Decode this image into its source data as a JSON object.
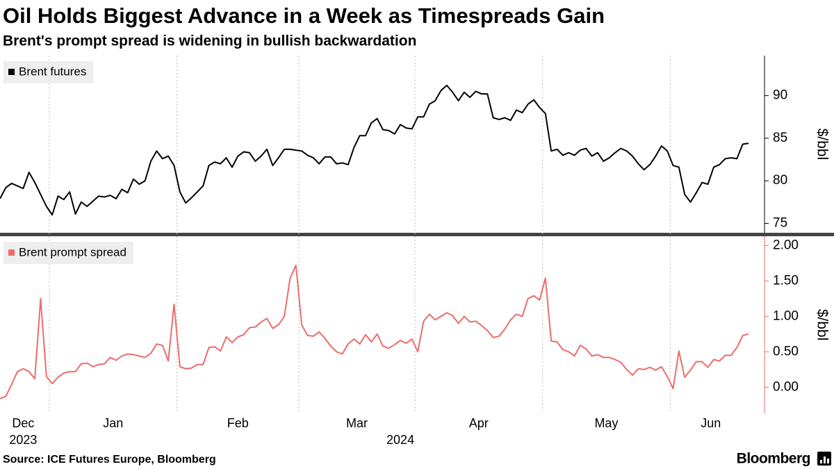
{
  "brand": "Bloomberg",
  "chart_data": [
    {
      "type": "line",
      "title": "Oil Holds Biggest Advance in a Week as Timespreads Gain",
      "subtitle": "Brent's prompt spread is widening in bullish backwardation",
      "source": "Source: ICE Futures Europe, Bloomberg",
      "y_label": "$/bbl",
      "ylim": [
        73.9,
        94.7
      ],
      "yticks": [
        75,
        80,
        85,
        90
      ],
      "series": [
        {
          "name": "Brent futures",
          "color": "#000000",
          "values": [
            77.9,
            79.2,
            79.7,
            79.4,
            79.1,
            81.0,
            79.8,
            78.4,
            77.0,
            76.0,
            78.2,
            77.8,
            78.7,
            76.1,
            77.5,
            77.0,
            77.6,
            78.2,
            78.1,
            78.3,
            77.9,
            79.0,
            78.6,
            80.2,
            79.6,
            80.0,
            82.3,
            83.5,
            82.6,
            82.9,
            81.8,
            78.7,
            77.4,
            78.0,
            78.7,
            79.4,
            81.8,
            82.2,
            82.0,
            82.7,
            81.6,
            82.9,
            83.4,
            83.3,
            82.3,
            82.9,
            83.7,
            81.8,
            82.7,
            83.7,
            83.7,
            83.6,
            83.5,
            83.0,
            82.7,
            82.0,
            82.8,
            82.8,
            82.0,
            82.1,
            81.9,
            83.9,
            85.3,
            85.3,
            86.8,
            87.3,
            86.0,
            85.9,
            85.5,
            86.6,
            86.2,
            86.1,
            87.5,
            87.5,
            89.0,
            89.4,
            90.6,
            91.2,
            90.4,
            89.4,
            90.4,
            89.8,
            90.5,
            90.2,
            90.2,
            87.4,
            87.2,
            87.4,
            87.1,
            88.3,
            88.0,
            89.0,
            89.5,
            88.6,
            87.9,
            83.5,
            83.7,
            83.0,
            83.3,
            83.0,
            83.6,
            83.8,
            82.9,
            83.3,
            82.3,
            82.7,
            83.3,
            83.8,
            83.5,
            82.9,
            82.0,
            81.3,
            81.9,
            82.9,
            84.1,
            83.5,
            81.8,
            81.6,
            78.4,
            77.5,
            78.6,
            79.8,
            79.6,
            81.6,
            81.9,
            82.6,
            82.7,
            82.6,
            84.3,
            84.4
          ]
        }
      ]
    },
    {
      "type": "line",
      "y_label": "$/bbl",
      "ylim": [
        -0.37,
        2.13
      ],
      "yticks": [
        {
          "value": 0,
          "label": "0.00"
        },
        {
          "value": 0.5,
          "label": "0.50"
        },
        {
          "value": 1,
          "label": "1.00"
        },
        {
          "value": 1.5,
          "label": "1.50"
        },
        {
          "value": 2,
          "label": "2.00"
        }
      ],
      "years": [
        "2023",
        "2024"
      ],
      "categories": [
        "Dec",
        "Dec",
        "Dec",
        "Dec",
        "Dec",
        "Dec",
        "Dec",
        "Dec",
        "Dec",
        "Jan",
        "Jan",
        "Jan",
        "Jan",
        "Jan",
        "Jan",
        "Jan",
        "Jan",
        "Jan",
        "Jan",
        "Jan",
        "Jan",
        "Jan",
        "Jan",
        "Jan",
        "Jan",
        "Jan",
        "Jan",
        "Jan",
        "Jan",
        "Jan",
        "Jan",
        "Feb",
        "Feb",
        "Feb",
        "Feb",
        "Feb",
        "Feb",
        "Feb",
        "Feb",
        "Feb",
        "Feb",
        "Feb",
        "Feb",
        "Feb",
        "Feb",
        "Feb",
        "Feb",
        "Feb",
        "Feb",
        "Feb",
        "Feb",
        "Feb",
        "Mar",
        "Mar",
        "Mar",
        "Mar",
        "Mar",
        "Mar",
        "Mar",
        "Mar",
        "Mar",
        "Mar",
        "Mar",
        "Mar",
        "Mar",
        "Mar",
        "Mar",
        "Mar",
        "Mar",
        "Mar",
        "Mar",
        "Mar",
        "Apr",
        "Apr",
        "Apr",
        "Apr",
        "Apr",
        "Apr",
        "Apr",
        "Apr",
        "Apr",
        "Apr",
        "Apr",
        "Apr",
        "Apr",
        "Apr",
        "Apr",
        "Apr",
        "Apr",
        "Apr",
        "Apr",
        "Apr",
        "Apr",
        "Apr",
        "May",
        "May",
        "May",
        "May",
        "May",
        "May",
        "May",
        "May",
        "May",
        "May",
        "May",
        "May",
        "May",
        "May",
        "May",
        "May",
        "May",
        "May",
        "May",
        "May",
        "May",
        "May",
        "Jun",
        "Jun",
        "Jun",
        "Jun",
        "Jun",
        "Jun",
        "Jun",
        "Jun",
        "Jun",
        "Jun",
        "Jun",
        "Jun",
        "Jun",
        "Jun"
      ],
      "series": [
        {
          "name": "Brent prompt spread",
          "color": "#ee6b6b",
          "values": [
            -0.16,
            -0.13,
            0.04,
            0.22,
            0.26,
            0.22,
            0.12,
            1.25,
            0.15,
            0.05,
            0.14,
            0.2,
            0.22,
            0.22,
            0.33,
            0.34,
            0.29,
            0.32,
            0.33,
            0.42,
            0.38,
            0.44,
            0.47,
            0.46,
            0.44,
            0.42,
            0.48,
            0.61,
            0.59,
            0.37,
            1.17,
            0.29,
            0.26,
            0.27,
            0.32,
            0.32,
            0.56,
            0.57,
            0.51,
            0.71,
            0.63,
            0.71,
            0.74,
            0.84,
            0.85,
            0.92,
            0.97,
            0.83,
            0.88,
            1.0,
            1.54,
            1.72,
            0.88,
            0.73,
            0.72,
            0.78,
            0.69,
            0.58,
            0.5,
            0.47,
            0.61,
            0.68,
            0.61,
            0.74,
            0.64,
            0.75,
            0.58,
            0.55,
            0.6,
            0.66,
            0.62,
            0.68,
            0.5,
            0.93,
            1.03,
            0.95,
            1.0,
            1.05,
            1.01,
            0.9,
            1.0,
            0.92,
            0.93,
            0.87,
            0.8,
            0.7,
            0.72,
            0.82,
            0.95,
            1.03,
            1.0,
            1.25,
            1.29,
            1.23,
            1.54,
            0.65,
            0.64,
            0.53,
            0.5,
            0.44,
            0.59,
            0.54,
            0.44,
            0.46,
            0.42,
            0.42,
            0.39,
            0.35,
            0.25,
            0.17,
            0.26,
            0.25,
            0.28,
            0.24,
            0.29,
            0.15,
            -0.02,
            0.51,
            0.14,
            0.24,
            0.36,
            0.36,
            0.28,
            0.39,
            0.37,
            0.45,
            0.45,
            0.56,
            0.73,
            0.75
          ]
        }
      ]
    }
  ]
}
